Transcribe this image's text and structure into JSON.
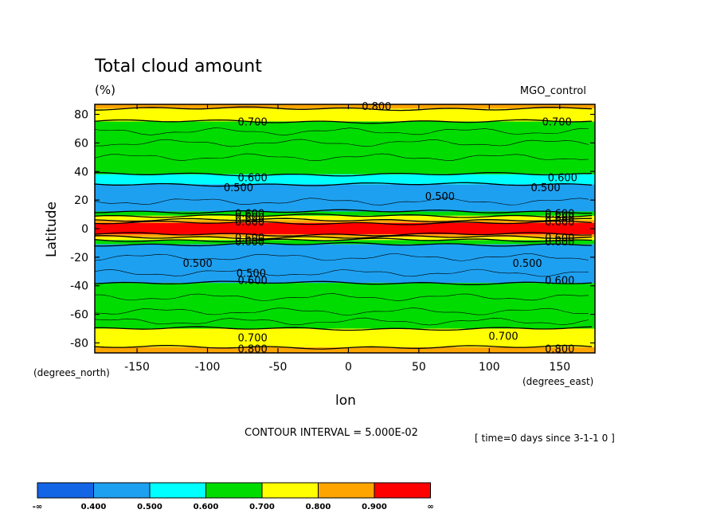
{
  "chart_data": {
    "type": "heatmap",
    "title": "Total cloud amount",
    "units": "(%)",
    "run_label": "MGO_control",
    "xlabel": "lon",
    "ylabel": "Latitude",
    "x_units": "(degrees_east)",
    "y_units": "(degrees_north)",
    "xlim": [
      -180,
      175
    ],
    "ylim": [
      -87,
      87
    ],
    "x_ticks": [
      -150,
      -100,
      -50,
      0,
      50,
      100,
      150
    ],
    "y_ticks": [
      80,
      60,
      40,
      20,
      0,
      -20,
      -40,
      -60,
      -80
    ],
    "bands": [
      {
        "lat_from": 87,
        "lat_to": 84,
        "level": "0.800-0.900"
      },
      {
        "lat_from": 84,
        "lat_to": 75,
        "level": "0.700-0.800"
      },
      {
        "lat_from": 75,
        "lat_to": 38,
        "level": "0.600-0.700"
      },
      {
        "lat_from": 38,
        "lat_to": 31,
        "level": "0.500-0.600"
      },
      {
        "lat_from": 31,
        "lat_to": 12,
        "level": "0.400-0.500"
      },
      {
        "lat_from": 12,
        "lat_to": 9,
        "level": "0.600-0.700"
      },
      {
        "lat_from": 9,
        "lat_to": 6,
        "level": "0.700-0.800"
      },
      {
        "lat_from": 6,
        "lat_to": 4,
        "level": "0.800-0.900"
      },
      {
        "lat_from": 4,
        "lat_to": -4,
        "level": "0.900-1.000"
      },
      {
        "lat_from": -4,
        "lat_to": -6,
        "level": "0.800-0.900"
      },
      {
        "lat_from": -6,
        "lat_to": -8,
        "level": "0.700-0.800"
      },
      {
        "lat_from": -8,
        "lat_to": -11,
        "level": "0.600-0.700"
      },
      {
        "lat_from": -11,
        "lat_to": -38,
        "level": "0.400-0.500"
      },
      {
        "lat_from": -38,
        "lat_to": -70,
        "level": "0.600-0.700"
      },
      {
        "lat_from": -70,
        "lat_to": -83,
        "level": "0.700-0.800"
      },
      {
        "lat_from": -83,
        "lat_to": -87,
        "level": "0.800-0.900"
      }
    ],
    "contour_labels": [
      {
        "lon": 20,
        "lat": 86,
        "text": "0.800"
      },
      {
        "lon": -68,
        "lat": 75,
        "text": "0.700"
      },
      {
        "lon": 148,
        "lat": 75,
        "text": "0.700"
      },
      {
        "lon": -68,
        "lat": 36,
        "text": "0.600"
      },
      {
        "lon": 152,
        "lat": 36,
        "text": "0.600"
      },
      {
        "lon": -78,
        "lat": 29,
        "text": "0.500"
      },
      {
        "lon": 140,
        "lat": 29,
        "text": "0.500"
      },
      {
        "lon": 65,
        "lat": 23,
        "text": "0.500"
      },
      {
        "lon": -70,
        "lat": 11,
        "text": "0.600"
      },
      {
        "lon": -70,
        "lat": 8,
        "text": "0.600"
      },
      {
        "lon": -70,
        "lat": 5,
        "text": "0.600"
      },
      {
        "lon": 150,
        "lat": 11,
        "text": "0.600"
      },
      {
        "lon": 150,
        "lat": 8,
        "text": "0.600"
      },
      {
        "lon": 150,
        "lat": 5,
        "text": "0.600"
      },
      {
        "lon": -70,
        "lat": -6,
        "text": "0.600"
      },
      {
        "lon": -70,
        "lat": -9,
        "text": "0.600"
      },
      {
        "lon": 150,
        "lat": -6,
        "text": "0.600"
      },
      {
        "lon": 150,
        "lat": -9,
        "text": "0.600"
      },
      {
        "lon": -107,
        "lat": -24,
        "text": "0.500"
      },
      {
        "lon": 127,
        "lat": -24,
        "text": "0.500"
      },
      {
        "lon": -69,
        "lat": -31,
        "text": "0.500"
      },
      {
        "lon": -68,
        "lat": -36,
        "text": "0.600"
      },
      {
        "lon": 150,
        "lat": -36,
        "text": "0.600"
      },
      {
        "lon": -68,
        "lat": -76,
        "text": "0.700"
      },
      {
        "lon": 110,
        "lat": -75,
        "text": "0.700"
      },
      {
        "lon": -68,
        "lat": -84,
        "text": "0.800"
      },
      {
        "lon": 150,
        "lat": -84,
        "text": "0.800"
      }
    ],
    "colorbar": {
      "boundaries": [
        "-∞",
        "0.400",
        "0.500",
        "0.600",
        "0.700",
        "0.800",
        "0.900",
        "∞"
      ],
      "colors": [
        "#1464e6",
        "#1ea0f0",
        "#00ffff",
        "#00dc00",
        "#ffff00",
        "#ffa500",
        "#ff0000"
      ]
    },
    "contour_interval": "CONTOUR INTERVAL = 5.000E-02",
    "time_note": "[ time=0 days since 3-1-1 0 ]"
  },
  "colors": {
    "0.400-0.500": "#1ea0f0",
    "0.500-0.600": "#00ffff",
    "0.600-0.700": "#00dc00",
    "0.700-0.800": "#ffff00",
    "0.800-0.900": "#ffa500",
    "0.900-1.000": "#ff0000"
  }
}
